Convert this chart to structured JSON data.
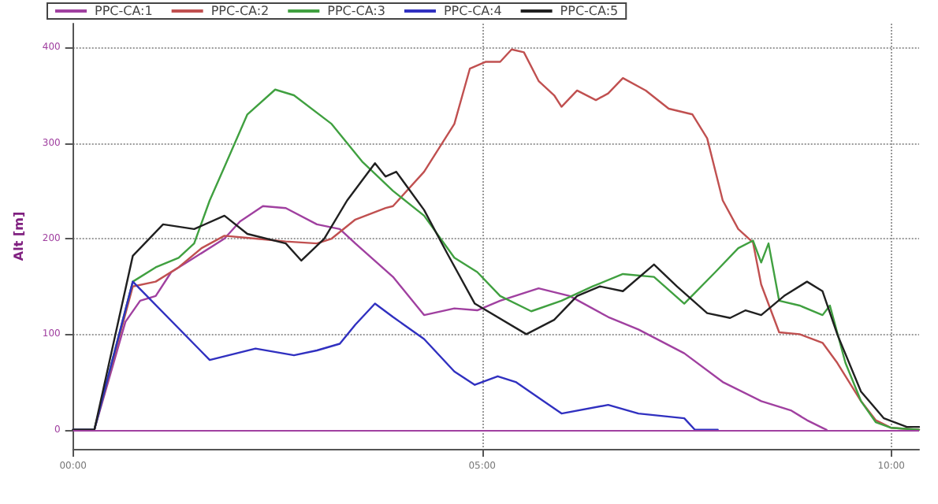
{
  "chart_data": {
    "type": "line",
    "ylabel": "Alt [m]",
    "xlim": [
      0,
      10.34
    ],
    "ylim": [
      -20,
      425
    ],
    "xticks": [
      {
        "value": 0,
        "label": "00:00"
      },
      {
        "value": 5,
        "label": "05:00"
      },
      {
        "value": 10,
        "label": "10:00"
      }
    ],
    "yticks": [
      0,
      100,
      200,
      300,
      400
    ],
    "grid": true,
    "legend": "top left",
    "marker": "none",
    "line_style": "solid",
    "ref_lines": [
      {
        "axis": "y",
        "value": 0,
        "color": "#a040a0"
      }
    ],
    "series": [
      {
        "name": "PPC-CA:1",
        "color": "#a040a0",
        "x": [
          0,
          0.26,
          0.64,
          0.82,
          1.01,
          1.2,
          1.48,
          1.85,
          2.04,
          2.32,
          2.6,
          2.98,
          3.26,
          3.45,
          3.91,
          4.29,
          4.66,
          4.94,
          5.22,
          5.69,
          6.07,
          6.54,
          6.91,
          7.47,
          7.94,
          8.41,
          8.78,
          8.97,
          9.16,
          9.21
        ],
        "values": [
          0,
          0,
          113,
          135,
          140,
          165,
          180,
          200,
          218,
          234,
          232,
          215,
          210,
          195,
          160,
          120,
          127,
          125,
          135,
          148,
          140,
          118,
          105,
          80,
          50,
          30,
          20,
          10,
          2,
          0
        ]
      },
      {
        "name": "PPC-CA:2",
        "color": "#c05050",
        "x": [
          0,
          0.26,
          0.73,
          1.01,
          1.29,
          1.57,
          1.85,
          2.23,
          2.6,
          2.98,
          3.16,
          3.45,
          3.82,
          3.91,
          4.29,
          4.66,
          4.85,
          5.04,
          5.22,
          5.36,
          5.51,
          5.69,
          5.88,
          5.97,
          6.16,
          6.39,
          6.54,
          6.72,
          7.0,
          7.28,
          7.57,
          7.75,
          7.94,
          8.13,
          8.31,
          8.41,
          8.63,
          8.88,
          9.16,
          9.34,
          9.63,
          9.81,
          10.0,
          10.34
        ],
        "values": [
          0,
          0,
          150,
          155,
          170,
          190,
          203,
          200,
          197,
          195,
          200,
          220,
          232,
          234,
          270,
          320,
          378,
          385,
          385,
          398,
          395,
          365,
          350,
          338,
          355,
          345,
          352,
          368,
          355,
          336,
          330,
          305,
          240,
          210,
          196,
          152,
          102,
          100,
          91,
          70,
          30,
          10,
          2,
          0
        ]
      },
      {
        "name": "PPC-CA:3",
        "color": "#40a040",
        "x": [
          0,
          0.26,
          0.73,
          1.01,
          1.29,
          1.48,
          1.67,
          1.85,
          2.13,
          2.47,
          2.7,
          3.16,
          3.54,
          3.91,
          4.29,
          4.66,
          4.94,
          5.22,
          5.6,
          5.97,
          6.35,
          6.72,
          7.1,
          7.47,
          7.85,
          8.13,
          8.31,
          8.41,
          8.5,
          8.63,
          8.88,
          9.16,
          9.25,
          9.44,
          9.63,
          9.81,
          10.0,
          10.34
        ],
        "values": [
          0,
          0,
          155,
          170,
          180,
          195,
          240,
          275,
          330,
          356,
          350,
          320,
          280,
          250,
          224,
          180,
          165,
          140,
          124,
          135,
          150,
          163,
          160,
          132,
          165,
          190,
          198,
          175,
          195,
          135,
          130,
          120,
          130,
          70,
          30,
          8,
          2,
          0
        ]
      },
      {
        "name": "PPC-CA:4",
        "color": "#3030c0",
        "x": [
          0,
          0.26,
          0.73,
          1.67,
          2.23,
          2.7,
          2.98,
          3.26,
          3.45,
          3.69,
          3.91,
          4.29,
          4.66,
          4.91,
          5.19,
          5.41,
          5.97,
          6.54,
          6.91,
          7.47,
          7.6,
          7.88
        ],
        "values": [
          0,
          0,
          155,
          73,
          85,
          78,
          83,
          90,
          110,
          132,
          118,
          95,
          61,
          47,
          56,
          50,
          17,
          26,
          17,
          12,
          0,
          0
        ]
      },
      {
        "name": "PPC-CA:5",
        "color": "#202020",
        "x": [
          0,
          0.26,
          0.73,
          1.1,
          1.48,
          1.85,
          2.13,
          2.6,
          2.79,
          3.07,
          3.35,
          3.69,
          3.82,
          3.95,
          4.29,
          4.57,
          4.91,
          5.54,
          5.88,
          6.16,
          6.44,
          6.72,
          7.1,
          7.38,
          7.75,
          8.03,
          8.22,
          8.41,
          8.69,
          8.97,
          9.16,
          9.34,
          9.63,
          9.91,
          10.19,
          10.34
        ],
        "values": [
          0,
          0,
          182,
          215,
          210,
          224,
          205,
          195,
          177,
          200,
          240,
          279,
          265,
          270,
          230,
          185,
          132,
          100,
          115,
          140,
          150,
          145,
          173,
          150,
          122,
          117,
          125,
          120,
          140,
          155,
          145,
          100,
          40,
          12,
          3,
          3
        ]
      }
    ]
  }
}
